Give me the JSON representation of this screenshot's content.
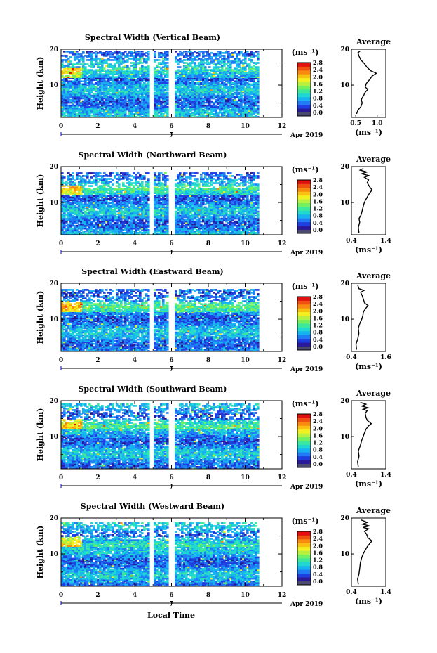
{
  "figure": {
    "xlabel": "Local Time",
    "date_label": "Apr 2019",
    "day_label": "7",
    "ylabel": "Height (km)",
    "unit_label": "(ms⁻¹)",
    "avg_title": "Average",
    "avg_xlabel": "(ms⁻¹)",
    "x_ticks": [
      "0",
      "2",
      "4",
      "6",
      "8",
      "10",
      "12"
    ],
    "y_ticks": [
      "20",
      "10"
    ],
    "colorbar_ticks": [
      "2.8",
      "2.4",
      "2.0",
      "1.6",
      "1.2",
      "0.8",
      "0.4",
      "0.0"
    ],
    "colorbar_colors": [
      "#4a4a6e",
      "#2a1a9a",
      "#1f3ee0",
      "#1f7cf5",
      "#17b2f0",
      "#20d8d0",
      "#3ee89a",
      "#72f060",
      "#b8f040",
      "#f2f020",
      "#f8c010",
      "#f88a10",
      "#f05010",
      "#e01010"
    ]
  },
  "chart_data": [
    {
      "type": "heatmap",
      "title": "Spectral Width (Vertical Beam)",
      "xlim": [
        0,
        12
      ],
      "ylim": [
        1,
        20
      ],
      "clim": [
        0.0,
        3.0
      ],
      "data_extent_hours": [
        0,
        10.7
      ],
      "data_top_km": 19.5,
      "gaps_hours": [
        [
          4.85,
          5.08
        ],
        [
          5.6,
          5.65
        ],
        [
          5.78,
          6.12
        ]
      ],
      "avg_profile": {
        "xlim": [
          0.4,
          1.2
        ],
        "x_ticks": [
          "0.5",
          "1.0"
        ],
        "points": [
          [
            0.52,
            2.0
          ],
          [
            0.55,
            3.0
          ],
          [
            0.62,
            4.0
          ],
          [
            0.65,
            5.0
          ],
          [
            0.63,
            6.0
          ],
          [
            0.68,
            7.0
          ],
          [
            0.72,
            8.0
          ],
          [
            0.78,
            8.8
          ],
          [
            0.72,
            9.5
          ],
          [
            0.75,
            10.5
          ],
          [
            0.82,
            11.5
          ],
          [
            0.88,
            12.5
          ],
          [
            0.98,
            13.3
          ],
          [
            0.85,
            14.0
          ],
          [
            0.76,
            15.0
          ],
          [
            0.7,
            16.0
          ],
          [
            0.62,
            17.0
          ],
          [
            0.58,
            18.0
          ],
          [
            0.55,
            19.0
          ],
          [
            0.6,
            19.5
          ]
        ]
      }
    },
    {
      "type": "heatmap",
      "title": "Spectral Width (Northward Beam)",
      "xlim": [
        0,
        12
      ],
      "ylim": [
        1,
        20
      ],
      "clim": [
        0.0,
        3.0
      ],
      "data_extent_hours": [
        0,
        10.7
      ],
      "data_top_km": 18.5,
      "gaps_hours": [
        [
          4.85,
          5.08
        ],
        [
          5.6,
          5.65
        ],
        [
          5.78,
          6.12
        ]
      ],
      "avg_profile": {
        "xlim": [
          0.4,
          1.4
        ],
        "x_ticks": [
          "0.4",
          "1.4"
        ],
        "points": [
          [
            0.62,
            1.5
          ],
          [
            0.6,
            3.0
          ],
          [
            0.64,
            4.5
          ],
          [
            0.62,
            5.5
          ],
          [
            0.68,
            6.5
          ],
          [
            0.72,
            8.0
          ],
          [
            0.76,
            9.5
          ],
          [
            0.8,
            10.5
          ],
          [
            0.86,
            11.5
          ],
          [
            0.92,
            12.5
          ],
          [
            1.0,
            13.5
          ],
          [
            0.92,
            14.5
          ],
          [
            0.86,
            15.5
          ],
          [
            0.9,
            16.3
          ],
          [
            0.78,
            17.0
          ],
          [
            0.9,
            17.5
          ],
          [
            0.7,
            18.0
          ],
          [
            0.85,
            18.5
          ],
          [
            0.65,
            19.0
          ],
          [
            0.75,
            19.5
          ]
        ]
      }
    },
    {
      "type": "heatmap",
      "title": "Spectral Width (Eastward Beam)",
      "xlim": [
        0,
        12
      ],
      "ylim": [
        1,
        20
      ],
      "clim": [
        0.0,
        3.0
      ],
      "data_extent_hours": [
        0,
        10.7
      ],
      "data_top_km": 18.5,
      "gaps_hours": [
        [
          4.85,
          5.08
        ],
        [
          5.6,
          5.65
        ],
        [
          5.78,
          6.12
        ]
      ],
      "avg_profile": {
        "xlim": [
          0.4,
          1.6
        ],
        "x_ticks": [
          "0.4",
          "1.6"
        ],
        "points": [
          [
            0.58,
            1.5
          ],
          [
            0.56,
            3.0
          ],
          [
            0.62,
            4.5
          ],
          [
            0.66,
            6.0
          ],
          [
            0.64,
            7.5
          ],
          [
            0.7,
            9.0
          ],
          [
            0.76,
            10.0
          ],
          [
            0.8,
            11.0
          ],
          [
            0.82,
            12.0
          ],
          [
            0.9,
            13.0
          ],
          [
            0.98,
            13.8
          ],
          [
            0.86,
            14.5
          ],
          [
            0.82,
            15.5
          ],
          [
            0.78,
            16.5
          ],
          [
            0.72,
            17.5
          ],
          [
            0.84,
            18.0
          ],
          [
            0.66,
            18.5
          ],
          [
            0.62,
            19.5
          ]
        ]
      }
    },
    {
      "type": "heatmap",
      "title": "Spectral Width (Southward Beam)",
      "xlim": [
        0,
        12
      ],
      "ylim": [
        1,
        20
      ],
      "clim": [
        0.0,
        3.0
      ],
      "data_extent_hours": [
        0,
        10.7
      ],
      "data_top_km": 19.2,
      "gaps_hours": [
        [
          4.85,
          5.08
        ],
        [
          5.6,
          5.65
        ],
        [
          5.78,
          6.12
        ]
      ],
      "avg_profile": {
        "xlim": [
          0.4,
          1.4
        ],
        "x_ticks": [
          "0.4",
          "1.4"
        ],
        "points": [
          [
            0.6,
            1.5
          ],
          [
            0.58,
            3.0
          ],
          [
            0.62,
            4.5
          ],
          [
            0.6,
            6.0
          ],
          [
            0.66,
            7.5
          ],
          [
            0.7,
            9.0
          ],
          [
            0.74,
            10.0
          ],
          [
            0.78,
            11.0
          ],
          [
            0.82,
            12.0
          ],
          [
            0.9,
            13.0
          ],
          [
            0.98,
            13.6
          ],
          [
            0.86,
            14.5
          ],
          [
            0.82,
            15.5
          ],
          [
            0.8,
            16.5
          ],
          [
            0.86,
            17.2
          ],
          [
            0.74,
            17.6
          ],
          [
            0.88,
            18.0
          ],
          [
            0.7,
            18.5
          ],
          [
            0.82,
            19.0
          ],
          [
            0.66,
            19.5
          ]
        ]
      }
    },
    {
      "type": "heatmap",
      "title": "Spectral Width (Westward Beam)",
      "xlim": [
        0,
        12
      ],
      "ylim": [
        1,
        20
      ],
      "clim": [
        0.0,
        3.0
      ],
      "data_extent_hours": [
        0,
        10.7
      ],
      "data_top_km": 18.8,
      "gaps_hours": [
        [
          4.85,
          5.08
        ],
        [
          5.6,
          5.65
        ],
        [
          5.78,
          6.12
        ]
      ],
      "avg_profile": {
        "xlim": [
          0.4,
          1.4
        ],
        "x_ticks": [
          "0.4",
          "1.4"
        ],
        "points": [
          [
            0.6,
            1.5
          ],
          [
            0.58,
            3.0
          ],
          [
            0.62,
            4.5
          ],
          [
            0.64,
            6.0
          ],
          [
            0.66,
            7.5
          ],
          [
            0.7,
            9.0
          ],
          [
            0.74,
            10.0
          ],
          [
            0.8,
            11.0
          ],
          [
            0.86,
            12.0
          ],
          [
            0.94,
            13.0
          ],
          [
            1.0,
            13.6
          ],
          [
            0.88,
            14.5
          ],
          [
            0.84,
            15.5
          ],
          [
            0.78,
            16.3
          ],
          [
            0.9,
            17.0
          ],
          [
            0.74,
            17.4
          ],
          [
            0.92,
            17.8
          ],
          [
            0.72,
            18.3
          ],
          [
            0.86,
            18.8
          ],
          [
            0.68,
            19.5
          ]
        ]
      }
    }
  ]
}
